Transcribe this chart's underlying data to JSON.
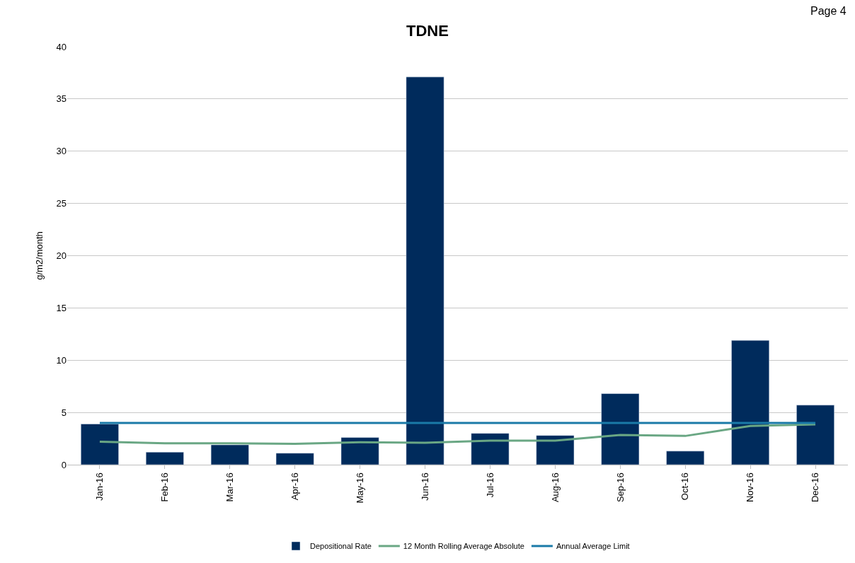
{
  "chart_data": {
    "type": "bar",
    "title": "TDNE",
    "ylabel": "g/m2/month",
    "categories": [
      "Jan-16",
      "Feb-16",
      "Mar-16",
      "Apr-16",
      "May-16",
      "Jun-16",
      "Jul-16",
      "Aug-16",
      "Sep-16",
      "Oct-16",
      "Nov-16",
      "Dec-16"
    ],
    "series": [
      {
        "name": "Depositional Rate",
        "color": "#002b5c",
        "values": [
          3.9,
          1.2,
          1.9,
          1.1,
          2.6,
          37.1,
          3.0,
          2.8,
          6.8,
          1.3,
          11.9,
          5.7
        ]
      },
      {
        "name": "12 Month Rolling Average Absolute",
        "type": "line",
        "color": "#6aa784",
        "values": [
          2.2,
          2.05,
          2.05,
          2.0,
          2.15,
          2.1,
          2.3,
          2.3,
          2.85,
          2.75,
          3.7,
          3.85
        ]
      },
      {
        "name": "Annual Average Limit",
        "type": "line",
        "color": "#1a7aa8",
        "values": [
          4,
          4,
          4,
          4,
          4,
          4,
          4,
          4,
          4,
          4,
          4,
          4
        ]
      }
    ],
    "ylim": [
      0,
      40
    ],
    "yticks": [
      0,
      5,
      10,
      15,
      20,
      25,
      30,
      35,
      40
    ],
    "grid": "y",
    "legend": "bottom",
    "marker": "none",
    "annotations": [
      "Page 4"
    ]
  }
}
